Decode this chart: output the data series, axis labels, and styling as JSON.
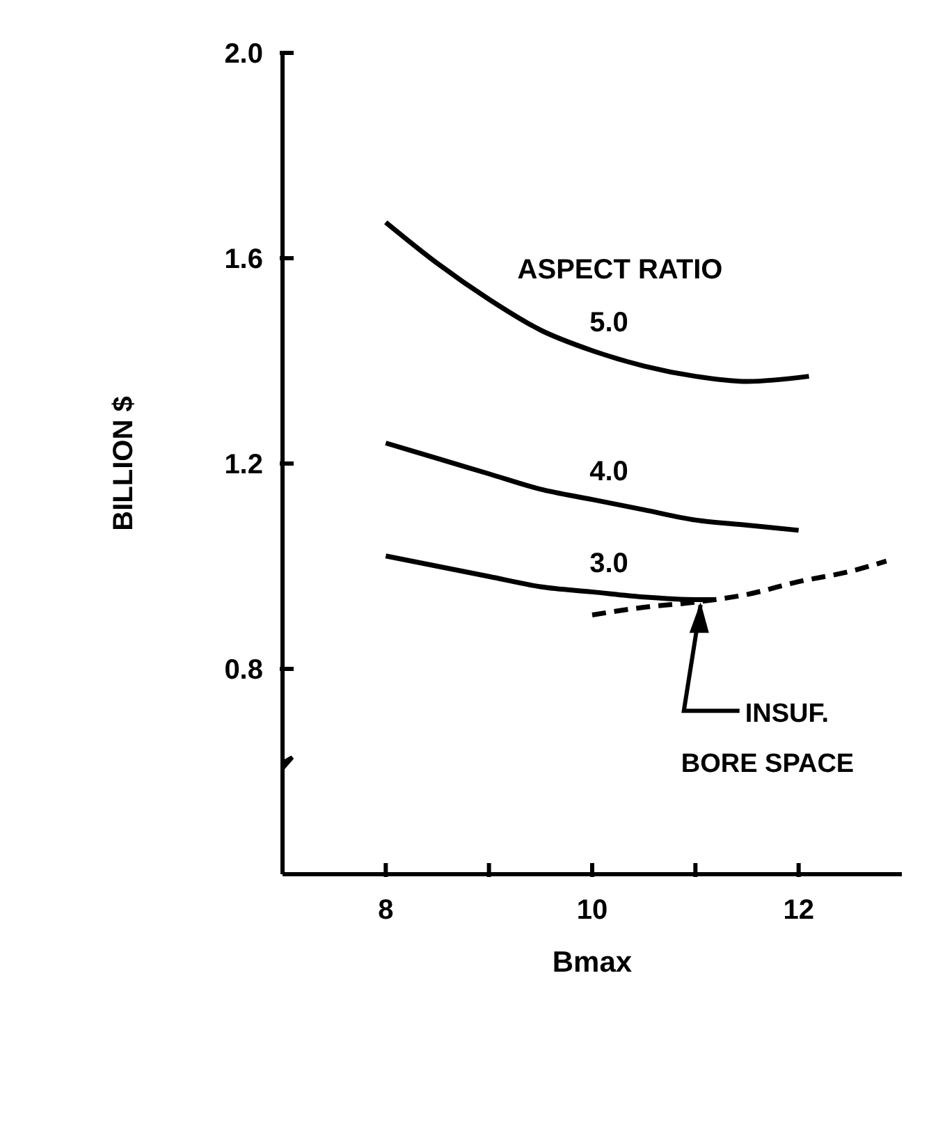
{
  "chart_data": {
    "type": "line",
    "xlabel": "Bmax",
    "ylabel": "BILLION $",
    "legend_title": "ASPECT RATIO",
    "xlim": [
      7,
      13
    ],
    "xticks": [
      8,
      {
        "value": 9,
        "label": null
      },
      10,
      {
        "value": 11,
        "label": null
      },
      12
    ],
    "ylim": [
      0.4,
      2.0
    ],
    "yticks": [
      0.8,
      1.2,
      1.6,
      {
        "value": 2.0,
        "label": "2.0"
      }
    ],
    "grid": false,
    "legend": false,
    "marker": "none",
    "series": [
      {
        "name": "5.0",
        "color": "#000000",
        "x": [
          8,
          8.5,
          9,
          9.5,
          10,
          10.5,
          11,
          11.5,
          12.1
        ],
        "values": [
          1.67,
          1.59,
          1.52,
          1.46,
          1.42,
          1.39,
          1.37,
          1.36,
          1.37
        ]
      },
      {
        "name": "4.0",
        "color": "#000000",
        "x": [
          8,
          8.5,
          9,
          9.5,
          10,
          10.5,
          11,
          11.5,
          12
        ],
        "values": [
          1.24,
          1.21,
          1.18,
          1.15,
          1.13,
          1.11,
          1.09,
          1.08,
          1.07
        ]
      },
      {
        "name": "3.0",
        "color": "#000000",
        "x": [
          8,
          8.5,
          9,
          9.5,
          10,
          10.5,
          11,
          11.2
        ],
        "values": [
          1.02,
          1.0,
          0.98,
          0.96,
          0.95,
          0.94,
          0.935,
          0.935
        ]
      },
      {
        "color": "#000000",
        "line_style": "dashed",
        "x": [
          10,
          10.5,
          11,
          11.5,
          12,
          12.5,
          12.85
        ],
        "values": [
          0.905,
          0.92,
          0.93,
          0.945,
          0.97,
          0.99,
          1.01
        ]
      }
    ],
    "annotations": [
      {
        "text": "INSUF. BORE SPACE",
        "x": 11.05,
        "y": 0.93
      }
    ]
  }
}
